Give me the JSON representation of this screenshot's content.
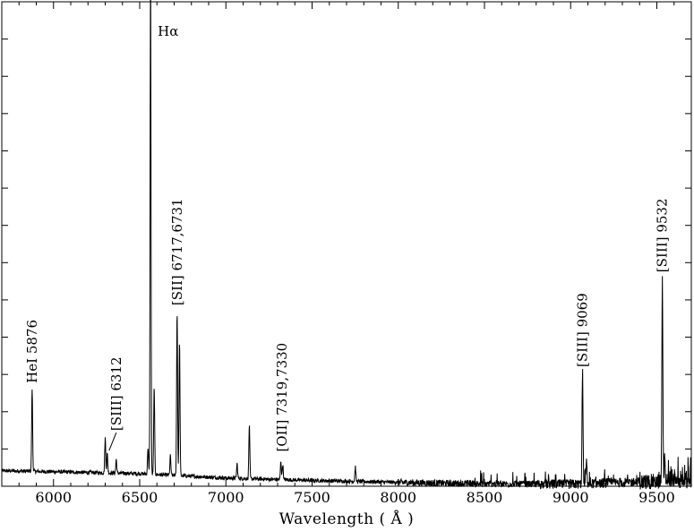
{
  "chart_data": {
    "type": "line",
    "title": "",
    "xlabel": "Wavelength  ( Å )",
    "ylabel": "",
    "xlim": [
      5700,
      9700
    ],
    "ylim": [
      0,
      1
    ],
    "x_ticks": [
      6000,
      6500,
      7000,
      7500,
      8000,
      8500,
      9000,
      9500
    ],
    "x_tick_labels": [
      "6000",
      "6500",
      "7000",
      "7500",
      "8000",
      "8500",
      "9000",
      "9500"
    ],
    "y_tick_count": 13,
    "grid": false,
    "continuum": [
      [
        5700,
        0.032
      ],
      [
        6000,
        0.03
      ],
      [
        6500,
        0.026
      ],
      [
        7000,
        0.017
      ],
      [
        7500,
        0.012
      ],
      [
        8000,
        0.008
      ],
      [
        8500,
        0.005
      ],
      [
        9000,
        0.004
      ],
      [
        9500,
        0.01
      ],
      [
        9700,
        0.012
      ]
    ],
    "emission_lines": [
      {
        "wavelength": 5876,
        "peak": 0.171
      },
      {
        "wavelength": 6300,
        "peak": 0.072
      },
      {
        "wavelength": 6312,
        "peak": 0.04
      },
      {
        "wavelength": 6364,
        "peak": 0.028
      },
      {
        "wavelength": 6548,
        "peak": 0.055
      },
      {
        "wavelength": 6563,
        "peak": 1.05
      },
      {
        "wavelength": 6584,
        "peak": 0.182
      },
      {
        "wavelength": 6678,
        "peak": 0.04
      },
      {
        "wavelength": 6717,
        "peak": 0.34
      },
      {
        "wavelength": 6731,
        "peak": 0.275
      },
      {
        "wavelength": 7065,
        "peak": 0.03
      },
      {
        "wavelength": 7136,
        "peak": 0.11
      },
      {
        "wavelength": 7319,
        "peak": 0.038
      },
      {
        "wavelength": 7330,
        "peak": 0.032
      },
      {
        "wavelength": 7751,
        "peak": 0.03
      },
      {
        "wavelength": 9069,
        "peak": 0.23
      },
      {
        "wavelength": 9092,
        "peak": 0.05
      },
      {
        "wavelength": 9532,
        "peak": 0.42
      },
      {
        "wavelength": 9546,
        "peak": 0.06
      }
    ],
    "annotations": [
      {
        "text": "HeI 5876",
        "wavelength": 5876
      },
      {
        "text": "[SIII] 6312",
        "wavelength": 6312
      },
      {
        "text": "Hα",
        "wavelength": 6563
      },
      {
        "text": "[SII] 6717,6731",
        "wavelength": 6717
      },
      {
        "text": "[OII] 7319,7330",
        "wavelength": 7325
      },
      {
        "text": "[SIII] 9069",
        "wavelength": 9069
      },
      {
        "text": "[SIII] 9532",
        "wavelength": 9532
      }
    ]
  }
}
